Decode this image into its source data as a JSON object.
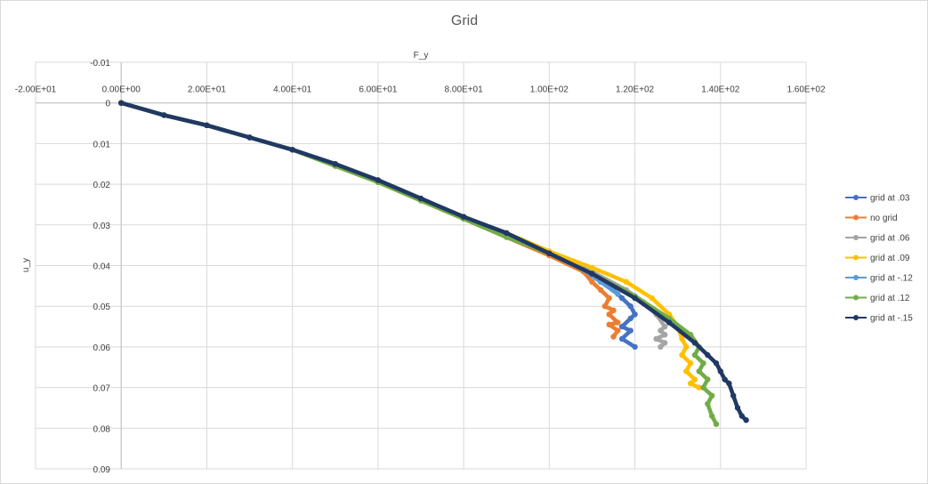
{
  "chart_data": {
    "type": "scatter",
    "title": "Grid",
    "xlabel": "F_y",
    "ylabel": "u_y",
    "xlim": [
      -20,
      160
    ],
    "ylim": [
      -0.01,
      0.09
    ],
    "y_inverted": true,
    "grid": true,
    "legend_position": "right",
    "x_ticks": [
      -20,
      0,
      20,
      40,
      60,
      80,
      100,
      120,
      140,
      160
    ],
    "x_tick_labels": [
      "-2.00E+01",
      "0.00E+00",
      "2.00E+01",
      "4.00E+01",
      "6.00E+01",
      "8.00E+01",
      "1.00E+02",
      "1.20E+02",
      "1.40E+02",
      "1.60E+02"
    ],
    "y_ticks": [
      -0.01,
      0,
      0.01,
      0.02,
      0.03,
      0.04,
      0.05,
      0.06,
      0.07,
      0.08,
      0.09
    ],
    "y_tick_labels": [
      "-0.01",
      "0",
      "0.01",
      "0.02",
      "0.03",
      "0.04",
      "0.05",
      "0.06",
      "0.07",
      "0.08",
      "0.09"
    ],
    "series": [
      {
        "name": "grid at .03",
        "color": "#4472C4",
        "x": [
          0,
          10,
          20,
          30,
          40,
          50,
          60,
          70,
          80,
          90,
          100,
          108,
          112,
          115,
          117,
          119,
          120,
          119,
          117,
          119,
          117,
          120
        ],
        "y": [
          0,
          0.003,
          0.0055,
          0.0085,
          0.0115,
          0.015,
          0.019,
          0.0235,
          0.028,
          0.032,
          0.037,
          0.041,
          0.044,
          0.046,
          0.048,
          0.05,
          0.052,
          0.053,
          0.055,
          0.056,
          0.058,
          0.06
        ]
      },
      {
        "name": "no grid",
        "color": "#ED7D31",
        "x": [
          0,
          10,
          20,
          30,
          40,
          50,
          60,
          70,
          80,
          90,
          100,
          108,
          110,
          112,
          114,
          113,
          115,
          114,
          116,
          114,
          116,
          115
        ],
        "y": [
          0,
          0.003,
          0.0055,
          0.0085,
          0.0115,
          0.0155,
          0.0195,
          0.024,
          0.0285,
          0.033,
          0.0375,
          0.0415,
          0.044,
          0.046,
          0.048,
          0.05,
          0.051,
          0.052,
          0.054,
          0.0545,
          0.056,
          0.0575
        ]
      },
      {
        "name": "grid at .06",
        "color": "#A5A5A5",
        "x": [
          0,
          10,
          20,
          30,
          40,
          50,
          60,
          70,
          80,
          90,
          100,
          110,
          118,
          122,
          125,
          127,
          126,
          127,
          125,
          127,
          126
        ],
        "y": [
          0,
          0.003,
          0.0055,
          0.0085,
          0.0115,
          0.015,
          0.019,
          0.0235,
          0.028,
          0.032,
          0.037,
          0.0415,
          0.046,
          0.049,
          0.052,
          0.055,
          0.056,
          0.057,
          0.058,
          0.059,
          0.06
        ]
      },
      {
        "name": "grid at .09",
        "color": "#FFC000",
        "x": [
          0,
          10,
          20,
          30,
          40,
          50,
          60,
          70,
          80,
          90,
          100,
          110,
          118,
          124,
          128,
          130,
          131,
          132,
          131,
          133,
          132,
          134,
          133,
          135
        ],
        "y": [
          0,
          0.003,
          0.0055,
          0.0085,
          0.0115,
          0.015,
          0.019,
          0.0235,
          0.028,
          0.032,
          0.0365,
          0.0405,
          0.044,
          0.048,
          0.052,
          0.055,
          0.058,
          0.06,
          0.062,
          0.064,
          0.066,
          0.068,
          0.069,
          0.07
        ]
      },
      {
        "name": "grid at -.12",
        "color": "#5B9BD5",
        "x": [
          0,
          10,
          20,
          30,
          40,
          50,
          60,
          70,
          80,
          90,
          100,
          108,
          112,
          116
        ],
        "y": [
          0,
          0.003,
          0.0055,
          0.0085,
          0.0115,
          0.015,
          0.019,
          0.0235,
          0.028,
          0.032,
          0.037,
          0.041,
          0.044,
          0.047
        ]
      },
      {
        "name": "grid at .12",
        "color": "#70AD47",
        "x": [
          0,
          10,
          20,
          30,
          40,
          50,
          60,
          70,
          80,
          90,
          100,
          110,
          120,
          128,
          133,
          135,
          134,
          136,
          135,
          137,
          136,
          138,
          137,
          138,
          139
        ],
        "y": [
          0,
          0.003,
          0.0055,
          0.0085,
          0.0115,
          0.0155,
          0.0195,
          0.024,
          0.0285,
          0.033,
          0.037,
          0.042,
          0.0475,
          0.053,
          0.057,
          0.06,
          0.062,
          0.064,
          0.066,
          0.068,
          0.07,
          0.072,
          0.074,
          0.077,
          0.079
        ]
      },
      {
        "name": "grid at -.15",
        "color": "#203864",
        "x": [
          0,
          10,
          20,
          30,
          40,
          50,
          60,
          70,
          80,
          90,
          100,
          110,
          120,
          128,
          134,
          137,
          139,
          140,
          141,
          142,
          143,
          144,
          145,
          146
        ],
        "y": [
          0,
          0.003,
          0.0055,
          0.0085,
          0.0115,
          0.015,
          0.019,
          0.0235,
          0.028,
          0.032,
          0.037,
          0.042,
          0.048,
          0.054,
          0.059,
          0.062,
          0.064,
          0.066,
          0.068,
          0.069,
          0.072,
          0.075,
          0.077,
          0.078
        ]
      }
    ]
  }
}
